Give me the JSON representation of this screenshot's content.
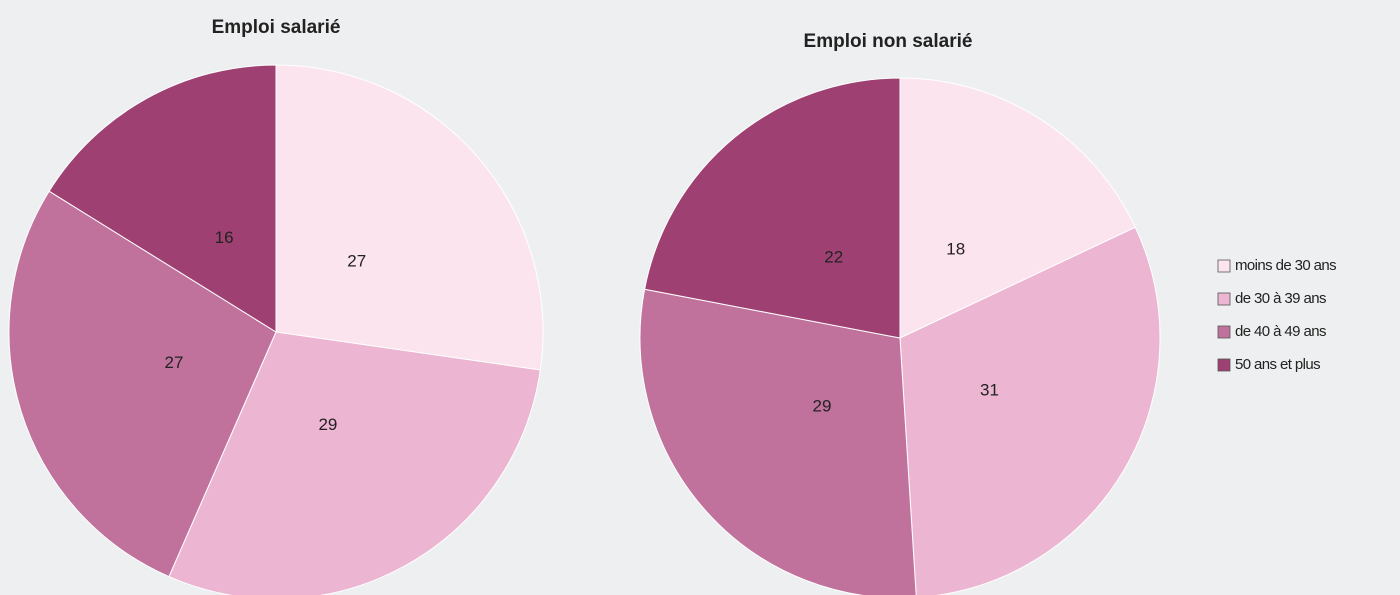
{
  "chart_data": [
    {
      "type": "pie",
      "title": "Emploi salarié",
      "categories": [
        "moins de 30 ans",
        "de 30 à 39 ans",
        "de 40 à 49 ans",
        "50 ans et plus"
      ],
      "values": [
        27,
        29,
        27,
        16
      ],
      "colors": [
        "#fce4ee",
        "#ecb5d2",
        "#c0729d",
        "#9e4172"
      ],
      "legend": "right"
    },
    {
      "type": "pie",
      "title": "Emploi non salarié",
      "categories": [
        "moins de 30 ans",
        "de 30 à 39 ans",
        "de 40 à 49 ans",
        "50 ans et plus"
      ],
      "values": [
        18,
        31,
        29,
        22
      ],
      "colors": [
        "#fce4ee",
        "#ecb5d2",
        "#c0729d",
        "#9e4172"
      ]
    }
  ]
}
